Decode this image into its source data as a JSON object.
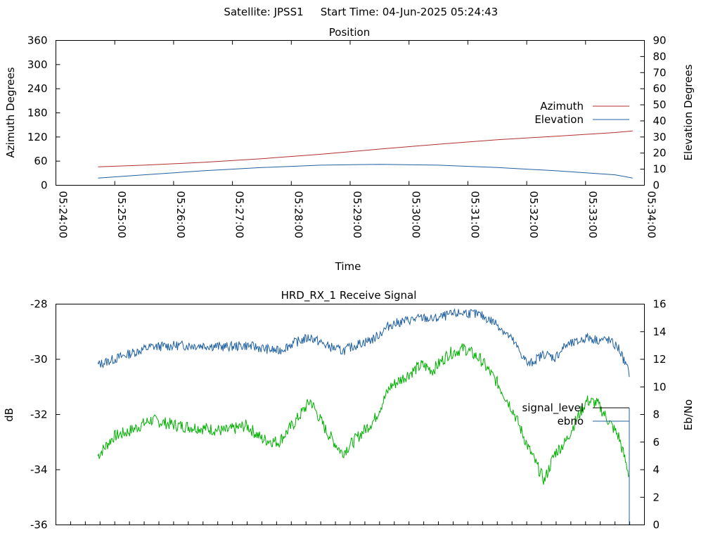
{
  "header": {
    "satellite": "Satellite: JPSS1",
    "start_time": "Start Time: 04-Jun-2025 05:24:43"
  },
  "colors": {
    "azimuth": "#b03030",
    "elevation": "#2060a0",
    "signal_level": "#000000",
    "ebno_legend": "#2060a0",
    "signal_trace": "#00b000",
    "ebno_trace": "#2060a0"
  },
  "chart_data": [
    {
      "type": "line",
      "title": "Position",
      "xlabel": "Time",
      "ylabel": "Azimuth Degrees",
      "y2label": "Elevation Degrees",
      "xlim": [
        "05:24:00",
        "05:34:00"
      ],
      "ylim": [
        0,
        360
      ],
      "y2lim": [
        0,
        90
      ],
      "x_ticks": [
        "05:24:00",
        "05:25:00",
        "05:26:00",
        "05:27:00",
        "05:28:00",
        "05:29:00",
        "05:30:00",
        "05:31:00",
        "05:32:00",
        "05:33:00",
        "05:34:00"
      ],
      "y_ticks": [
        "0",
        "60",
        "120",
        "180",
        "240",
        "300",
        "360"
      ],
      "y2_ticks": [
        "0",
        "10",
        "20",
        "30",
        "40",
        "50",
        "60",
        "70",
        "80",
        "90"
      ],
      "legend_position": "right",
      "series": [
        {
          "name": "Azimuth",
          "axis": "left",
          "x": [
            "05:24:43",
            "05:25:30",
            "05:26:30",
            "05:27:30",
            "05:28:30",
            "05:29:30",
            "05:30:30",
            "05:31:30",
            "05:32:30",
            "05:33:30",
            "05:33:48"
          ],
          "values": [
            46,
            50,
            57,
            66,
            77,
            90,
            102,
            113,
            122,
            131,
            135
          ]
        },
        {
          "name": "Elevation",
          "axis": "right",
          "x": [
            "05:24:43",
            "05:25:30",
            "05:26:30",
            "05:27:30",
            "05:28:30",
            "05:29:30",
            "05:30:30",
            "05:31:30",
            "05:32:30",
            "05:33:30",
            "05:33:48"
          ],
          "values": [
            4.5,
            6.5,
            9,
            11,
            12.5,
            13,
            12.5,
            11,
            9,
            6.5,
            4.5
          ]
        }
      ]
    },
    {
      "type": "line",
      "title": "HRD_RX_1 Receive Signal",
      "ylabel": "dB",
      "y2label": "Eb/No",
      "ylim": [
        -36,
        -28
      ],
      "y2lim": [
        0,
        16
      ],
      "y_ticks": [
        "-28",
        "-30",
        "-32",
        "-34",
        "-36"
      ],
      "y2_ticks": [
        "0",
        "2",
        "4",
        "6",
        "8",
        "10",
        "12",
        "14",
        "16"
      ],
      "x_minor_tick_count": 40,
      "legend_position": "right",
      "series": [
        {
          "name": "signal_level",
          "axis": "left",
          "x": [
            0,
            0.3,
            0.6,
            1,
            1.5,
            2,
            2.4,
            2.8,
            3.1,
            3.4,
            3.7,
            4,
            4.3,
            4.6,
            4.9,
            5.2,
            5.5,
            5.8,
            6.1,
            6.3,
            6.6,
            6.9,
            7.2,
            7.5,
            7.8,
            8.1,
            8.4,
            8.6,
            8.8,
            9.0,
            9.2,
            9.4,
            9.6,
            9.8,
            10.0
          ],
          "values": [
            -33.5,
            -32.8,
            -32.6,
            -32.2,
            -32.4,
            -32.5,
            -32.6,
            -32.4,
            -32.9,
            -33.0,
            -32.3,
            -31.5,
            -32.6,
            -33.4,
            -32.8,
            -32.2,
            -31.0,
            -30.6,
            -30.2,
            -30.4,
            -29.8,
            -29.6,
            -30.0,
            -30.8,
            -31.8,
            -33.2,
            -34.4,
            -33.4,
            -33.0,
            -32.2,
            -31.5,
            -31.6,
            -32.2,
            -32.8,
            -34.2
          ]
        },
        {
          "name": "ebno",
          "axis": "right",
          "x": [
            0,
            0.3,
            0.6,
            1,
            1.5,
            2,
            2.4,
            2.8,
            3.1,
            3.4,
            3.7,
            4,
            4.3,
            4.6,
            4.9,
            5.2,
            5.5,
            5.8,
            6.1,
            6.3,
            6.6,
            6.9,
            7.2,
            7.5,
            7.8,
            8.1,
            8.4,
            8.6,
            8.8,
            9.0,
            9.2,
            9.4,
            9.6,
            9.8,
            10.0
          ],
          "values": [
            11.6,
            12.0,
            12.4,
            12.9,
            13.0,
            13.0,
            12.9,
            13.0,
            12.8,
            12.6,
            13.2,
            13.6,
            13.0,
            12.6,
            13.1,
            13.5,
            14.5,
            14.8,
            15.0,
            14.9,
            15.2,
            15.4,
            15.2,
            14.6,
            13.4,
            11.6,
            12.4,
            12.1,
            13.0,
            13.2,
            13.6,
            13.4,
            13.4,
            12.8,
            11.0
          ]
        }
      ]
    }
  ]
}
